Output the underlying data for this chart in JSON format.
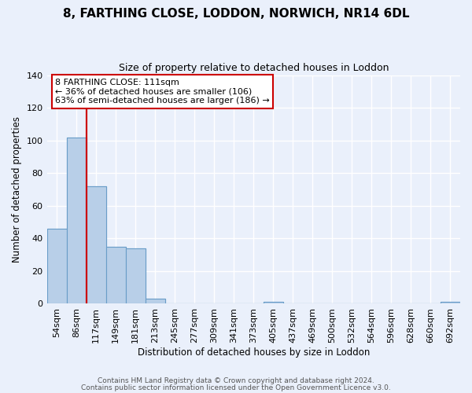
{
  "title1": "8, FARTHING CLOSE, LODDON, NORWICH, NR14 6DL",
  "title2": "Size of property relative to detached houses in Loddon",
  "xlabel": "Distribution of detached houses by size in Loddon",
  "ylabel": "Number of detached properties",
  "bin_labels": [
    "54sqm",
    "86sqm",
    "117sqm",
    "149sqm",
    "181sqm",
    "213sqm",
    "245sqm",
    "277sqm",
    "309sqm",
    "341sqm",
    "373sqm",
    "405sqm",
    "437sqm",
    "469sqm",
    "500sqm",
    "532sqm",
    "564sqm",
    "596sqm",
    "628sqm",
    "660sqm",
    "692sqm"
  ],
  "bar_heights": [
    46,
    102,
    72,
    35,
    34,
    3,
    0,
    0,
    0,
    0,
    0,
    1,
    0,
    0,
    0,
    0,
    0,
    0,
    0,
    0,
    1
  ],
  "bar_color": "#b8cfe8",
  "bar_edgecolor": "#6a9dc8",
  "red_line_x": 1.5,
  "annotation_lines": [
    "8 FARTHING CLOSE: 111sqm",
    "← 36% of detached houses are smaller (106)",
    "63% of semi-detached houses are larger (186) →"
  ],
  "ylim": [
    0,
    140
  ],
  "yticks": [
    0,
    20,
    40,
    60,
    80,
    100,
    120,
    140
  ],
  "footer1": "Contains HM Land Registry data © Crown copyright and database right 2024.",
  "footer2": "Contains public sector information licensed under the Open Government Licence v3.0.",
  "bg_color": "#eaf0fb",
  "plot_bg_color": "#eaf0fb",
  "grid_color": "#ffffff",
  "annotation_box_edgecolor": "#cc0000",
  "red_line_color": "#cc0000",
  "title_fontsize": 11,
  "subtitle_fontsize": 9,
  "axis_label_fontsize": 8.5,
  "tick_fontsize": 8,
  "footer_fontsize": 6.5
}
